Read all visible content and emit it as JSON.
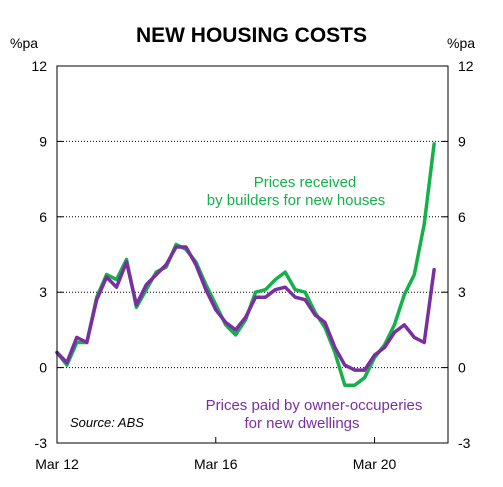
{
  "chart_data": {
    "type": "line",
    "title": "NEW HOUSING COSTS",
    "y_unit_left": "%pa",
    "y_unit_right": "%pa",
    "ylim": [
      -3,
      12
    ],
    "yticks": [
      12,
      9,
      6,
      3,
      0,
      -3
    ],
    "xticks": [
      {
        "label": "Mar 12",
        "x": 2012.25
      },
      {
        "label": "Mar 16",
        "x": 2016.25
      },
      {
        "label": "Mar 20",
        "x": 2020.25
      }
    ],
    "xlim": [
      2012.25,
      2022.1
    ],
    "gridlines": "dotted horizontal",
    "source": "Source: ABS",
    "annotations": {
      "builders": [
        "Prices received",
        "by builders for new houses"
      ],
      "owner": [
        "Prices paid by owner-occuperies",
        "for new dwellings"
      ]
    },
    "colors": {
      "builders": "#14b14b",
      "owner": "#7a2fa0"
    },
    "series": [
      {
        "id": "builders",
        "x": [
          2012.25,
          2012.5,
          2012.75,
          2013.0,
          2013.25,
          2013.5,
          2013.75,
          2014.0,
          2014.25,
          2014.5,
          2014.75,
          2015.0,
          2015.25,
          2015.5,
          2015.75,
          2016.0,
          2016.25,
          2016.5,
          2016.75,
          2017.0,
          2017.25,
          2017.5,
          2017.75,
          2018.0,
          2018.25,
          2018.5,
          2018.75,
          2019.0,
          2019.25,
          2019.5,
          2019.75,
          2020.0,
          2020.25,
          2020.5,
          2020.75,
          2021.0,
          2021.25,
          2021.5,
          2021.75,
          2022.0
        ],
        "values": [
          0.6,
          0.1,
          1.0,
          1.0,
          2.8,
          3.7,
          3.5,
          4.3,
          2.4,
          3.1,
          3.8,
          4.0,
          4.9,
          4.7,
          4.2,
          3.3,
          2.5,
          1.7,
          1.3,
          1.9,
          3.0,
          3.1,
          3.5,
          3.8,
          3.1,
          3.0,
          2.2,
          1.6,
          0.6,
          -0.7,
          -0.7,
          -0.4,
          0.4,
          0.9,
          1.7,
          2.9,
          3.7,
          5.7,
          8.9,
          null
        ]
      },
      {
        "id": "owner",
        "x": [
          2012.25,
          2012.5,
          2012.75,
          2013.0,
          2013.25,
          2013.5,
          2013.75,
          2014.0,
          2014.25,
          2014.5,
          2014.75,
          2015.0,
          2015.25,
          2015.5,
          2015.75,
          2016.0,
          2016.25,
          2016.5,
          2016.75,
          2017.0,
          2017.25,
          2017.5,
          2017.75,
          2018.0,
          2018.25,
          2018.5,
          2018.75,
          2019.0,
          2019.25,
          2019.5,
          2019.75,
          2020.0,
          2020.25,
          2020.5,
          2020.75,
          2021.0,
          2021.25,
          2021.5,
          2021.75
        ],
        "values": [
          0.6,
          0.2,
          1.2,
          1.0,
          2.7,
          3.6,
          3.2,
          4.2,
          2.5,
          3.3,
          3.7,
          4.1,
          4.8,
          4.8,
          4.1,
          3.1,
          2.3,
          1.8,
          1.5,
          2.0,
          2.8,
          2.8,
          3.1,
          3.2,
          2.8,
          2.7,
          2.1,
          1.8,
          0.8,
          0.1,
          -0.1,
          -0.1,
          0.5,
          0.8,
          1.4,
          1.7,
          1.2,
          1.0,
          3.9
        ]
      }
    ]
  }
}
